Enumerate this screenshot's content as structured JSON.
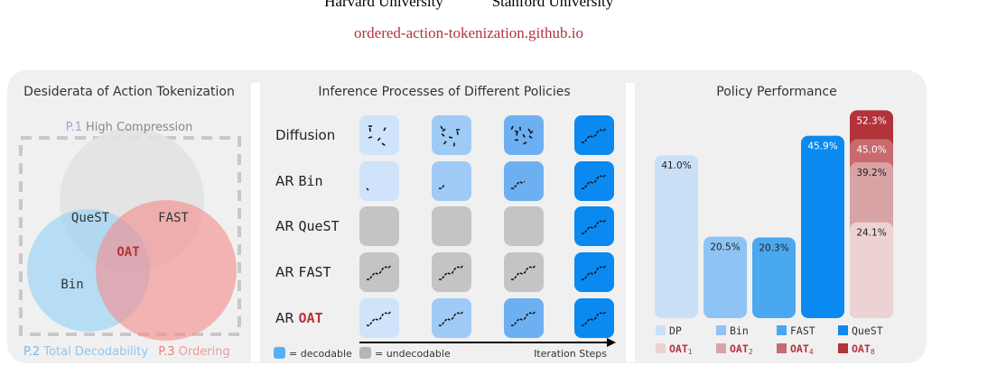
{
  "header": {
    "affiliations": [
      "Harvard University",
      "Stanford University"
    ],
    "link": "ordered-action-tokenization.github.io"
  },
  "desiderata": {
    "title": "Desiderata of Action Tokenization",
    "properties": [
      {
        "id": "P.1",
        "label": "High Compression"
      },
      {
        "id": "P.2",
        "label": "Total Decodability"
      },
      {
        "id": "P.3",
        "label": "Ordering"
      }
    ],
    "venn_labels": [
      "QueST",
      "FAST",
      "OAT",
      "Bin"
    ]
  },
  "inference": {
    "title": "Inference Processes of Different Policies",
    "rows": [
      {
        "prefix": "",
        "name": "Diffusion"
      },
      {
        "prefix": "AR",
        "name": "Bin"
      },
      {
        "prefix": "AR",
        "name": "QueST"
      },
      {
        "prefix": "AR",
        "name": "FAST"
      },
      {
        "prefix": "AR",
        "name": "OAT"
      }
    ],
    "legend": {
      "decodable": "= decodable",
      "undecodable": "= undecodable",
      "axis": "Iteration Steps"
    }
  },
  "performance": {
    "title": "Policy Performance",
    "bars": [
      {
        "name": "DP",
        "value": 41.0,
        "label": "41.0%",
        "color": "#c9e0f7"
      },
      {
        "name": "Bin",
        "value": 20.5,
        "label": "20.5%",
        "color": "#8ec4f4"
      },
      {
        "name": "FAST",
        "value": 20.3,
        "label": "20.3%",
        "color": "#4aa8f0"
      },
      {
        "name": "QueST",
        "value": 45.9,
        "label": "45.9%",
        "color": "#0a8af0"
      }
    ],
    "oat": [
      {
        "name": "OAT",
        "sub": "1",
        "value": 24.1,
        "label": "24.1%",
        "color": "#ecd2d3"
      },
      {
        "name": "OAT",
        "sub": "2",
        "value": 39.2,
        "label": "39.2%",
        "color": "#d8a3a5"
      },
      {
        "name": "OAT",
        "sub": "4",
        "value": 45.0,
        "label": "45.0%",
        "color": "#c96a6e"
      },
      {
        "name": "OAT",
        "sub": "8",
        "value": 52.3,
        "label": "52.3%",
        "color": "#b3333a"
      }
    ]
  }
}
